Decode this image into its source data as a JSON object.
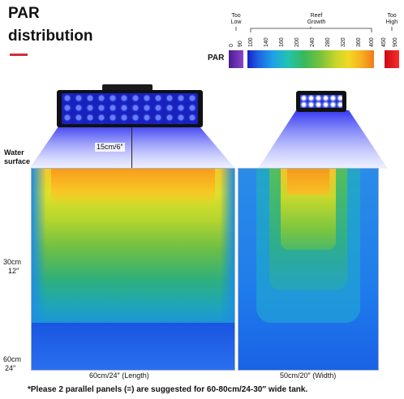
{
  "heading": {
    "line1": "PAR",
    "line2": "distribution"
  },
  "legend": {
    "par_label": "PAR",
    "categories": [
      {
        "label_top": "Too",
        "label_bottom": "Low",
        "color": "#6f2fb3"
      },
      {
        "label_top": "Reef",
        "label_bottom": "Growth",
        "color": "#3aa84c"
      },
      {
        "label_top": "Too",
        "label_bottom": "High",
        "color": "#d9121f"
      }
    ],
    "ticks_low": [
      "0",
      "90"
    ],
    "ticks_growth": [
      "100",
      "140",
      "160",
      "200",
      "240",
      "280",
      "320",
      "360",
      "400"
    ],
    "ticks_high": [
      "450",
      "900"
    ]
  },
  "annotations": {
    "distance": "15cm/6″",
    "water_line1": "Water",
    "water_line2": "surface",
    "depth_mid_1": "30cm",
    "depth_mid_2": "12″",
    "depth_bottom_1": "60cm",
    "depth_bottom_2": "24″",
    "length_label": "60cm/24″ (Length)",
    "width_label": "50cm/20″ (Width)"
  },
  "footnote": "*Please 2 parallel panels (=) are suggested for 60-80cm/24-30″ wide tank."
}
